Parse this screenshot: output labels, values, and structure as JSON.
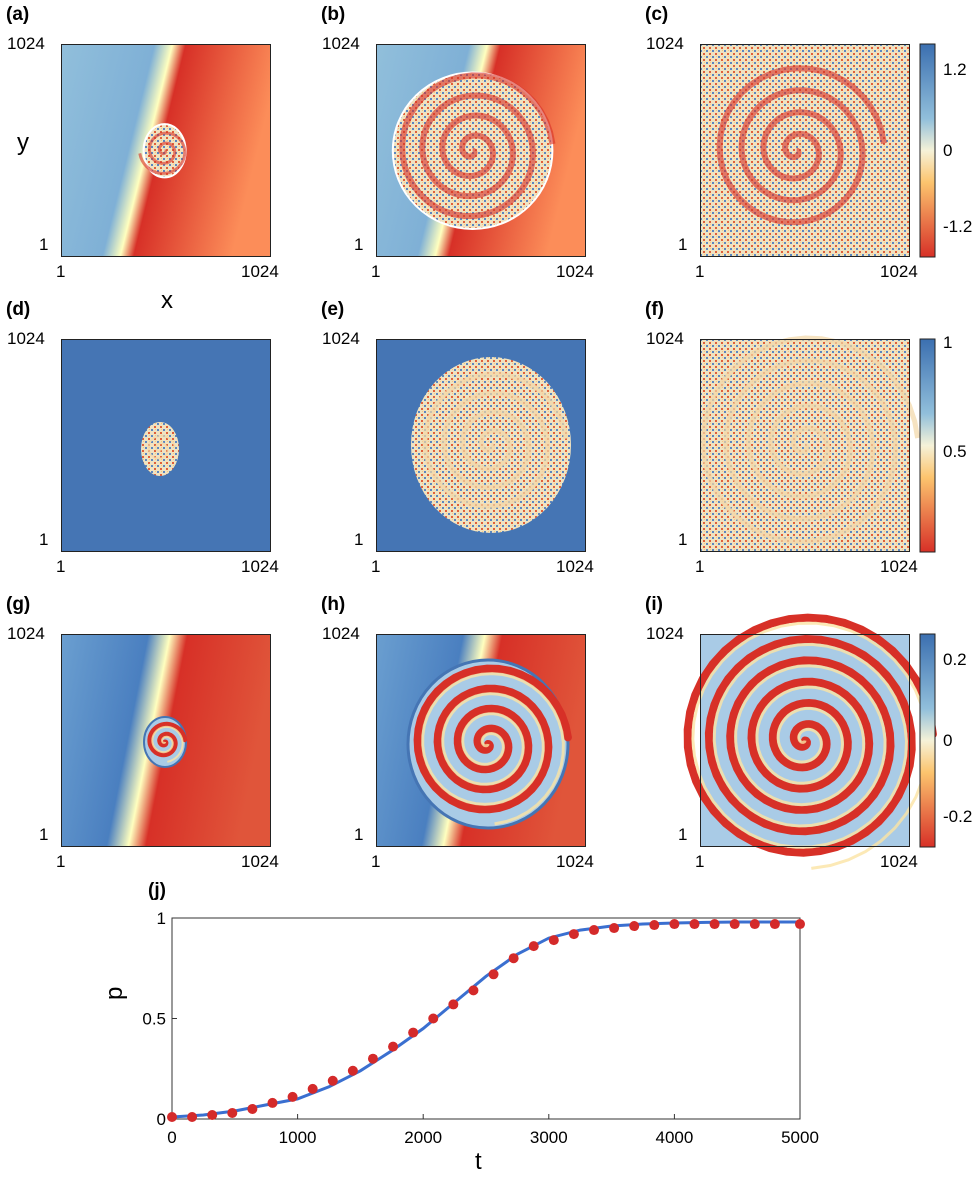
{
  "panels": [
    {
      "label": "(a)",
      "x_min": "1",
      "x_max": "1024",
      "y_min": "1",
      "y_max": "1024",
      "field": "phase",
      "xlabel": "x",
      "ylabel": "y"
    },
    {
      "label": "(b)",
      "x_min": "1",
      "x_max": "1024",
      "y_min": "1",
      "y_max": "1024",
      "field": "phase"
    },
    {
      "label": "(c)",
      "x_min": "1",
      "x_max": "1024",
      "y_min": "1",
      "y_max": "1024",
      "field": "phase"
    },
    {
      "label": "(d)",
      "x_min": "1",
      "x_max": "1024",
      "y_min": "1",
      "y_max": "1024",
      "field": "order"
    },
    {
      "label": "(e)",
      "x_min": "1",
      "x_max": "1024",
      "y_min": "1",
      "y_max": "1024",
      "field": "order"
    },
    {
      "label": "(f)",
      "x_min": "1",
      "x_max": "1024",
      "y_min": "1",
      "y_max": "1024",
      "field": "order"
    },
    {
      "label": "(g)",
      "x_min": "1",
      "x_max": "1024",
      "y_min": "1",
      "y_max": "1024",
      "field": "smooth"
    },
    {
      "label": "(h)",
      "x_min": "1",
      "x_max": "1024",
      "y_min": "1",
      "y_max": "1024",
      "field": "smooth"
    },
    {
      "label": "(i)",
      "x_min": "1",
      "x_max": "1024",
      "y_min": "1",
      "y_max": "1024",
      "field": "smooth"
    }
  ],
  "colorbars": [
    {
      "ticks": [
        "1.2",
        "0",
        "-1.2"
      ],
      "top_color": "#3b6fb0",
      "bottom_color": "#d73027"
    },
    {
      "ticks": [
        "1",
        "0.5"
      ],
      "top_color": "#3b6fb0",
      "bottom_color": "#d73027"
    },
    {
      "ticks": [
        "0.2",
        "0",
        "-0.2"
      ],
      "top_color": "#3b6fb0",
      "bottom_color": "#d73027"
    }
  ],
  "colors": {
    "blue": "#4575b4",
    "light_blue": "#91bfdb",
    "cream": "#ffffbf",
    "orange": "#fc8d59",
    "red": "#d73027",
    "curve": "#3a6fd0",
    "dots": "#d42a2a"
  },
  "chart_data": {
    "type": "line",
    "label": "(j)",
    "xlabel": "t",
    "ylabel": "p",
    "xlim": [
      0,
      5000
    ],
    "ylim": [
      0,
      1
    ],
    "xticks": [
      "0",
      "1000",
      "2000",
      "3000",
      "4000",
      "5000"
    ],
    "yticks": [
      "0",
      "0.5",
      "1"
    ],
    "series": [
      {
        "style": "line",
        "color": "#3a6fd0",
        "x": [
          0,
          250,
          500,
          750,
          1000,
          1250,
          1500,
          1750,
          2000,
          2250,
          2500,
          2750,
          3000,
          3250,
          3500,
          3750,
          4000,
          4250,
          4500,
          4750,
          5000
        ],
        "values": [
          0.01,
          0.02,
          0.04,
          0.07,
          0.1,
          0.16,
          0.24,
          0.34,
          0.45,
          0.58,
          0.71,
          0.82,
          0.9,
          0.94,
          0.96,
          0.97,
          0.975,
          0.978,
          0.98,
          0.98,
          0.98
        ]
      },
      {
        "style": "markers",
        "color": "#d42a2a",
        "x": [
          0,
          160,
          320,
          480,
          640,
          800,
          960,
          1120,
          1280,
          1440,
          1600,
          1760,
          1920,
          2080,
          2240,
          2400,
          2560,
          2720,
          2880,
          3040,
          3200,
          3360,
          3520,
          3680,
          3840,
          4000,
          4160,
          4320,
          4480,
          4640,
          4800,
          5000
        ],
        "values": [
          0.01,
          0.01,
          0.02,
          0.03,
          0.05,
          0.08,
          0.11,
          0.15,
          0.19,
          0.24,
          0.3,
          0.36,
          0.43,
          0.5,
          0.57,
          0.64,
          0.72,
          0.8,
          0.86,
          0.89,
          0.92,
          0.94,
          0.95,
          0.96,
          0.965,
          0.97,
          0.97,
          0.97,
          0.97,
          0.97,
          0.97,
          0.97
        ]
      }
    ]
  }
}
